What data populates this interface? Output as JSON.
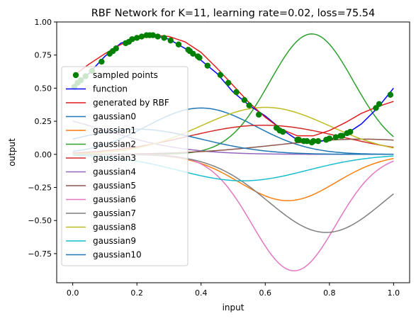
{
  "chart_data": {
    "type": "line",
    "title": "RBF Network for K=11, learning rate=0.02, loss=75.54",
    "xlabel": "input",
    "ylabel": "output",
    "xlim": [
      -0.05,
      1.05
    ],
    "ylim": [
      -0.97,
      1.0
    ],
    "xticks": [
      0.0,
      0.2,
      0.4,
      0.6,
      0.8,
      1.0
    ],
    "xtick_labels": [
      "0.0",
      "0.2",
      "0.4",
      "0.6",
      "0.8",
      "1.0"
    ],
    "yticks": [
      -0.75,
      -0.5,
      -0.25,
      0.0,
      0.25,
      0.5,
      0.75,
      1.0
    ],
    "ytick_labels": [
      "−0.75",
      "−0.50",
      "−0.25",
      "0.00",
      "0.25",
      "0.50",
      "0.75",
      "1.00"
    ],
    "grid": false,
    "legend_position": "left",
    "sampled_points": {
      "name": "sampled points",
      "color": "#008000",
      "x": [
        0.005,
        0.015,
        0.025,
        0.04,
        0.06,
        0.09,
        0.115,
        0.125,
        0.135,
        0.165,
        0.175,
        0.185,
        0.2,
        0.215,
        0.23,
        0.24,
        0.25,
        0.265,
        0.285,
        0.305,
        0.33,
        0.36,
        0.365,
        0.375,
        0.39,
        0.395,
        0.42,
        0.46,
        0.485,
        0.51,
        0.535,
        0.55,
        0.58,
        0.635,
        0.645,
        0.655,
        0.7,
        0.705,
        0.72,
        0.73,
        0.745,
        0.75,
        0.765,
        0.79,
        0.8,
        0.82,
        0.835,
        0.84,
        0.855,
        0.865,
        0.945,
        0.955,
        0.99
      ],
      "y": [
        0.51,
        0.54,
        0.56,
        0.59,
        0.63,
        0.7,
        0.76,
        0.78,
        0.8,
        0.84,
        0.85,
        0.87,
        0.88,
        0.89,
        0.9,
        0.9,
        0.9,
        0.89,
        0.88,
        0.86,
        0.83,
        0.79,
        0.78,
        0.76,
        0.74,
        0.73,
        0.67,
        0.6,
        0.54,
        0.47,
        0.41,
        0.37,
        0.3,
        0.2,
        0.18,
        0.17,
        0.11,
        0.11,
        0.1,
        0.1,
        0.09,
        0.1,
        0.1,
        0.11,
        0.12,
        0.13,
        0.14,
        0.14,
        0.16,
        0.17,
        0.35,
        0.38,
        0.45
      ]
    },
    "function": {
      "name": "function",
      "color": "#0000ff",
      "x": [
        0.0,
        0.05,
        0.1,
        0.15,
        0.2,
        0.25,
        0.3,
        0.35,
        0.4,
        0.45,
        0.5,
        0.55,
        0.6,
        0.65,
        0.7,
        0.75,
        0.8,
        0.85,
        0.9,
        0.95,
        1.0
      ],
      "y": [
        0.5,
        0.61,
        0.74,
        0.84,
        0.88,
        0.9,
        0.87,
        0.8,
        0.71,
        0.61,
        0.47,
        0.37,
        0.29,
        0.19,
        0.11,
        0.09,
        0.11,
        0.15,
        0.23,
        0.35,
        0.5
      ]
    },
    "generated": {
      "name": "generated by RBF",
      "color": "#e41a1c",
      "x": [
        0.0,
        0.05,
        0.1,
        0.15,
        0.2,
        0.25,
        0.3,
        0.35,
        0.4,
        0.45,
        0.5,
        0.55,
        0.6,
        0.65,
        0.7,
        0.75,
        0.8,
        0.85,
        0.9,
        0.95,
        1.0
      ],
      "y": [
        0.59,
        0.68,
        0.76,
        0.83,
        0.87,
        0.9,
        0.89,
        0.85,
        0.77,
        0.65,
        0.52,
        0.39,
        0.28,
        0.19,
        0.14,
        0.14,
        0.18,
        0.24,
        0.31,
        0.36,
        0.4
      ]
    },
    "gaussians": [
      {
        "name": "gaussian0",
        "color": "#1f77b4",
        "center": 0.4,
        "amplitude": 0.35,
        "width": 0.17
      },
      {
        "name": "gaussian1",
        "color": "#ff7f0e",
        "center": 0.67,
        "amplitude": -0.35,
        "width": 0.15
      },
      {
        "name": "gaussian2",
        "color": "#2ca02c",
        "center": 0.745,
        "amplitude": 0.91,
        "width": 0.13
      },
      {
        "name": "gaussian3",
        "color": "#d62728",
        "center": 0.595,
        "amplitude": 0.22,
        "width": 0.24
      },
      {
        "name": "gaussian4",
        "color": "#9467bd",
        "center": -0.15,
        "amplitude": 0.3,
        "width": 0.25
      },
      {
        "name": "gaussian5",
        "color": "#8c564b",
        "center": 0.9,
        "amplitude": 0.115,
        "width": 0.27
      },
      {
        "name": "gaussian6",
        "color": "#e377c2",
        "center": 0.69,
        "amplitude": -0.88,
        "width": 0.13
      },
      {
        "name": "gaussian7",
        "color": "#7f7f7f",
        "center": 0.79,
        "amplitude": -0.59,
        "width": 0.18
      },
      {
        "name": "gaussian8",
        "color": "#bcbd22",
        "center": 0.6,
        "amplitude": 0.355,
        "width": 0.2
      },
      {
        "name": "gaussian9",
        "color": "#17becf",
        "center": 0.53,
        "amplitude": -0.2,
        "width": 0.2
      },
      {
        "name": "gaussian10",
        "color": "#1f77b4",
        "center": 0.2,
        "amplitude": 0.19,
        "width": 0.2
      }
    ]
  }
}
